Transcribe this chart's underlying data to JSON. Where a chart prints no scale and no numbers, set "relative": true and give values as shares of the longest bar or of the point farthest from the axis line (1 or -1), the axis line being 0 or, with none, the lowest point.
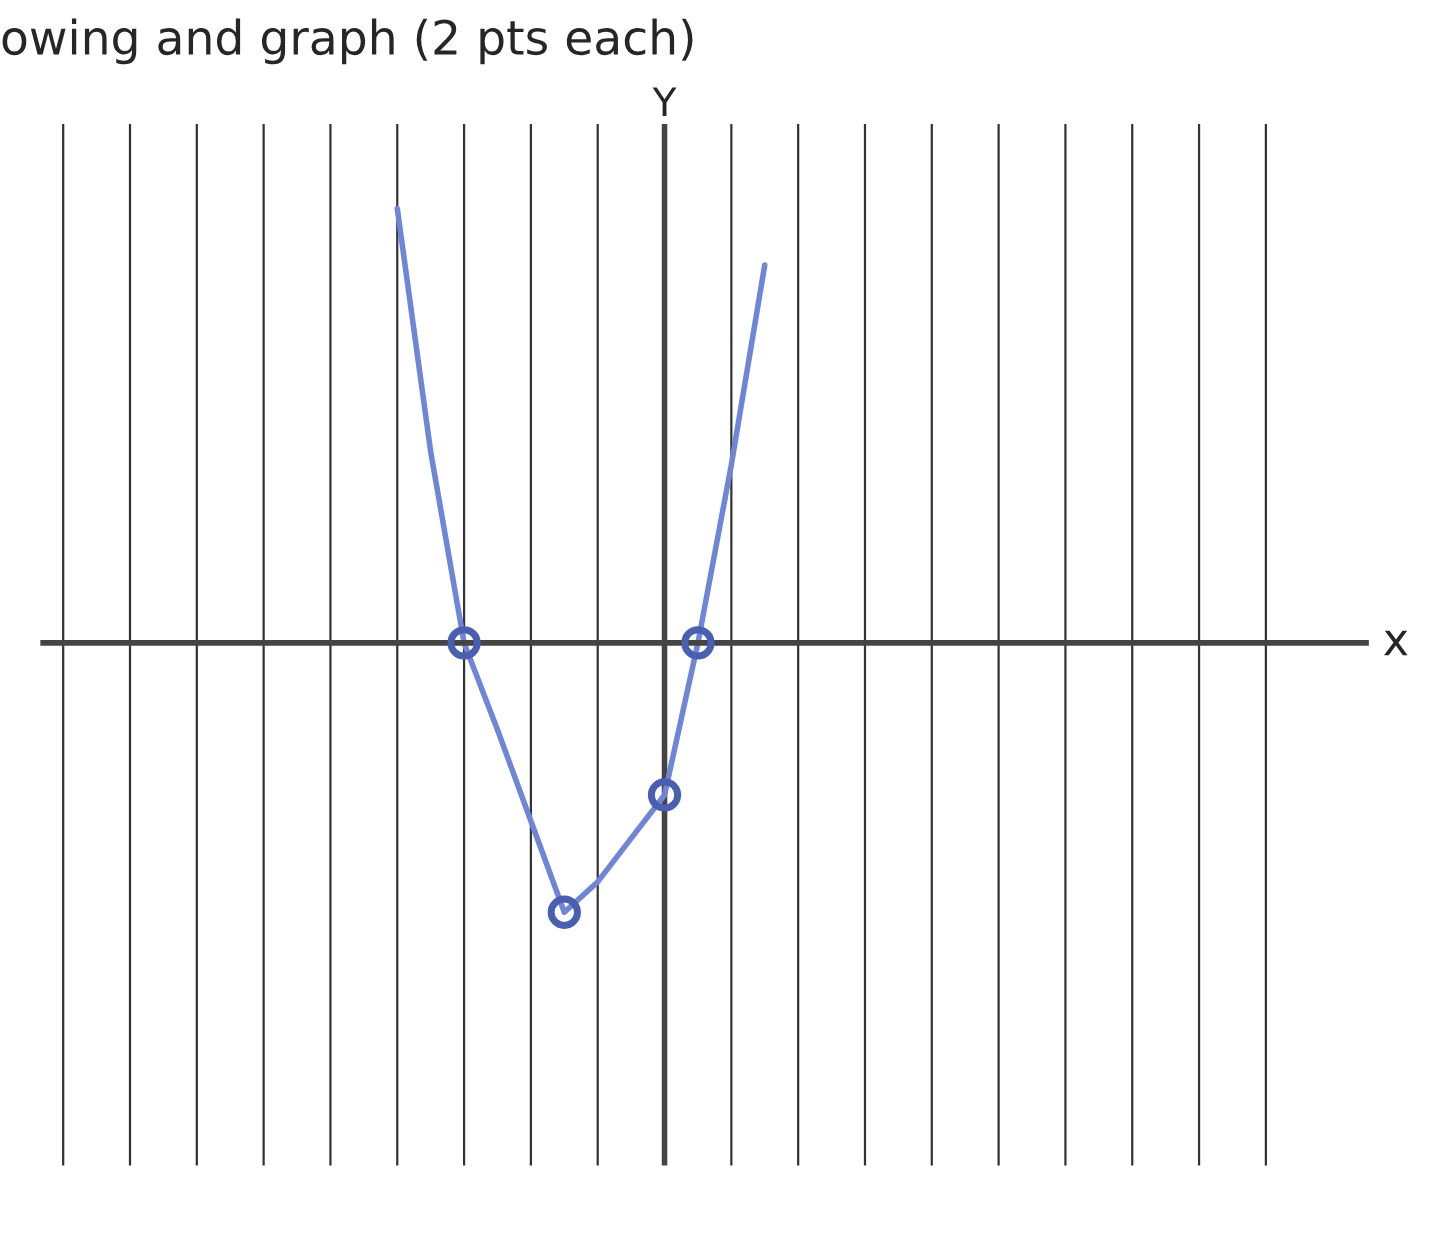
{
  "chart_data": {
    "type": "line",
    "title": "owing and graph (2 pts each)",
    "annotations": [
      "Y",
      "x"
    ],
    "relative": true,
    "categories": [
      null,
      null,
      null,
      null,
      null,
      null,
      null,
      null,
      null,
      null,
      null,
      null
    ],
    "grid": "x",
    "marker": "none",
    "line_style": "solid",
    "series": [
      {
        "color": "#6f86d6",
        "values": [
          1.0,
          0.44,
          0.0,
          -0.2,
          -0.41,
          -0.62,
          -0.55,
          -0.45,
          -0.35,
          0.0,
          0.41,
          0.87
        ]
      }
    ]
  }
}
